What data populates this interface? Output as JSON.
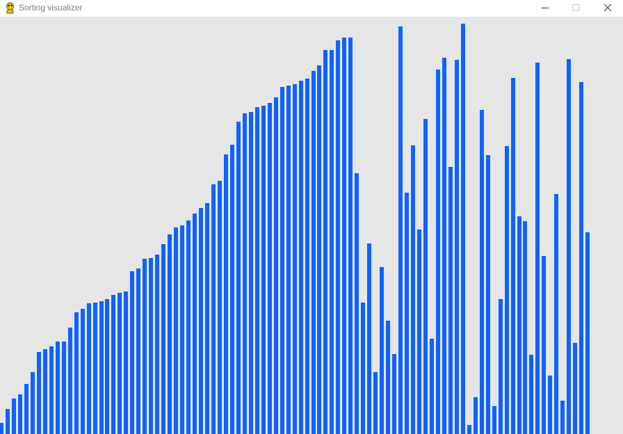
{
  "window": {
    "title": "Sorting visualizer",
    "icon": "pygame-snake-icon",
    "buttons": [
      "minimize-icon",
      "maximize-icon",
      "close-icon"
    ]
  },
  "colors": {
    "bar": "#0f62fe",
    "background": "#e6e6e6",
    "titlebar": "#ffffff"
  },
  "visualizer": {
    "max_value": 590,
    "bar_heights": [
      16,
      36,
      51,
      57,
      72,
      89,
      118,
      122,
      126,
      133,
      133,
      153,
      175,
      180,
      188,
      189,
      191,
      194,
      200,
      203,
      205,
      234,
      238,
      252,
      253,
      258,
      273,
      287,
      297,
      300,
      307,
      317,
      325,
      332,
      359,
      364,
      402,
      416,
      449,
      461,
      463,
      470,
      472,
      476,
      484,
      499,
      501,
      503,
      508,
      511,
      522,
      530,
      552,
      552,
      566,
      570,
      570,
      375,
      189,
      274,
      89,
      240,
      163,
      115,
      586,
      347,
      415,
      294,
      453,
      137,
      524,
      541,
      384,
      538,
      590,
      13,
      53,
      466,
      401,
      40,
      194,
      414,
      512,
      313,
      306,
      114,
      534,
      256,
      84,
      345,
      48,
      539,
      131,
      506,
      290
    ]
  }
}
